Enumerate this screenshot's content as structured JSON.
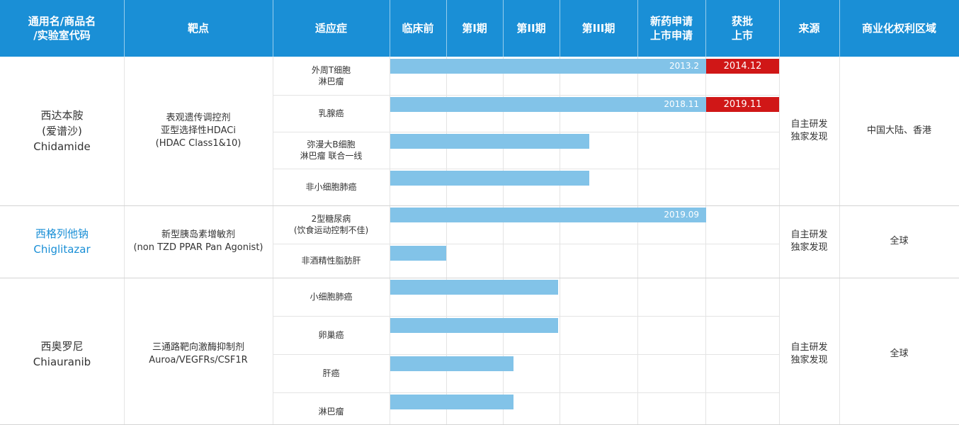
{
  "header": {
    "name": [
      "通用名/商品名",
      "/实验室代码"
    ],
    "target": "靶点",
    "indication": "适应症",
    "preclinical": "临床前",
    "phase1": "第I期",
    "phase2": "第II期",
    "phase3": "第III期",
    "nda": [
      "新药申请",
      "上市申请"
    ],
    "approved": [
      "获批",
      "上市"
    ],
    "source": "来源",
    "rights": "商业化权利区域"
  },
  "drugs": [
    {
      "name": [
        "西达本胺",
        "(爱谱沙)",
        "Chidamide"
      ],
      "target": [
        "表观遗传调控剂",
        "亚型选择性HDACi",
        "(HDAC Class1&10)"
      ],
      "source": [
        "自主研发",
        "独家发现"
      ],
      "rights": "中国大陆、香港",
      "indications": [
        {
          "name": [
            "外周T细胞",
            "淋巴瘤"
          ],
          "stage": 5,
          "label": "2013.2",
          "approved": "2014.12"
        },
        {
          "name": [
            "乳腺癌"
          ],
          "stage": 5,
          "label": "2018.11",
          "approved": "2019.11"
        },
        {
          "name": [
            "弥漫大B细胞",
            "淋巴瘤 联合一线"
          ],
          "stage": 3.4
        },
        {
          "name": [
            "非小细胞肺癌"
          ],
          "stage": 3.4
        }
      ]
    },
    {
      "name": [
        "西格列他钠",
        "Chiglitazar"
      ],
      "target": [
        "新型胰岛素增敏剂",
        "(non TZD PPAR Pan Agonist)"
      ],
      "source": [
        "自主研发",
        "独家发现"
      ],
      "rights": "全球",
      "indications": [
        {
          "name": [
            "2型糖尿病",
            "(饮食运动控制不佳)"
          ],
          "stage": 5,
          "label": "2019.09"
        },
        {
          "name": [
            "非酒精性脂肪肝"
          ],
          "stage": 1
        }
      ]
    },
    {
      "name": [
        "西奥罗尼",
        "Chiauranib"
      ],
      "target": [
        "三通路靶向激酶抑制剂",
        "Auroa/VEGFRs/CSF1R"
      ],
      "source": [
        "自主研发",
        "独家发现"
      ],
      "rights": "全球",
      "indications": [
        {
          "name": [
            "小细胞肺癌"
          ],
          "stage": 3
        },
        {
          "name": [
            "卵巢癌"
          ],
          "stage": 3
        },
        {
          "name": [
            "肝癌"
          ],
          "stage": 2.2
        },
        {
          "name": [
            "淋巴瘤"
          ],
          "stage": 2.2
        }
      ]
    }
  ],
  "colors": {
    "header": "#1a8fd6",
    "bar": "#82c3e8",
    "approved": "#d01717",
    "drug_link": "#1a8fd6"
  }
}
